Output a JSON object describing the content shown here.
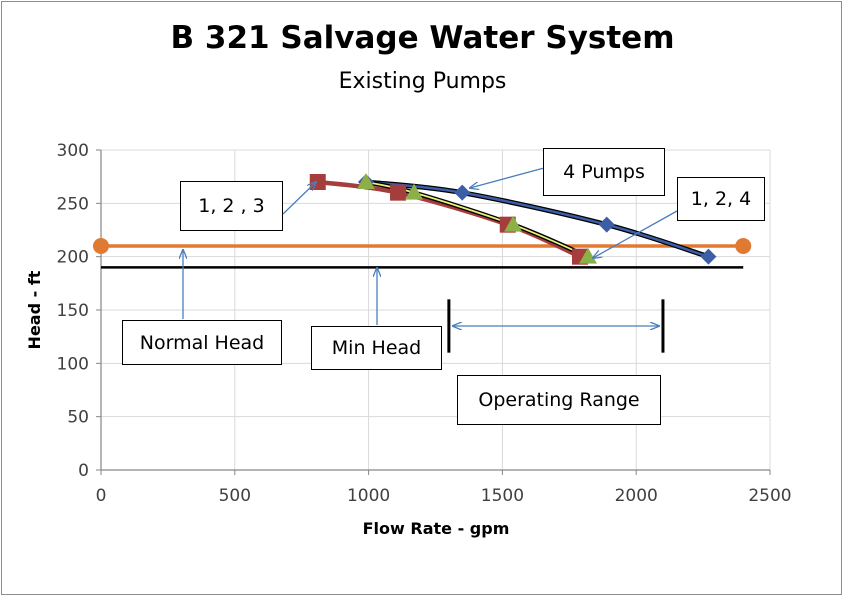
{
  "chart_data": {
    "type": "line",
    "title": "B 321 Salvage Water System",
    "subtitle": "Existing Pumps",
    "xlabel": "Flow Rate - gpm",
    "ylabel": "Head - ft",
    "xlim": [
      0,
      2500
    ],
    "ylim": [
      0,
      300
    ],
    "xticks": [
      0,
      500,
      1000,
      1500,
      2000,
      2500
    ],
    "yticks": [
      0,
      50,
      100,
      150,
      200,
      250,
      300
    ],
    "grid": true,
    "series": [
      {
        "color": "#e07a33",
        "marker": "circle",
        "x": [
          0,
          2400
        ],
        "y": [
          210,
          210
        ]
      },
      {
        "color": "#000000",
        "marker": "none",
        "x": [
          0,
          2400
        ],
        "y": [
          190,
          190
        ]
      },
      {
        "color": "#a63d3d",
        "marker": "square",
        "x": [
          810,
          1110,
          1520,
          1790
        ],
        "y": [
          270,
          260,
          230,
          200
        ]
      },
      {
        "color": "#8db046",
        "marker": "triangle",
        "x": [
          990,
          1170,
          1540,
          1820
        ],
        "y": [
          270,
          260,
          230,
          200
        ]
      },
      {
        "color": "#3b5ea6",
        "marker": "diamond",
        "x": [
          990,
          1350,
          1890,
          2270
        ],
        "y": [
          270,
          260,
          230,
          200
        ]
      }
    ],
    "operating_range": {
      "x": [
        1300,
        2100
      ],
      "y": [
        110,
        160
      ]
    },
    "annotations": [
      {
        "text": "1, 2 , 3"
      },
      {
        "text": "4 Pumps"
      },
      {
        "text": "1, 2, 4"
      },
      {
        "text": "Normal Head"
      },
      {
        "text": "Min Head"
      },
      {
        "text": "Operating Range"
      }
    ]
  }
}
